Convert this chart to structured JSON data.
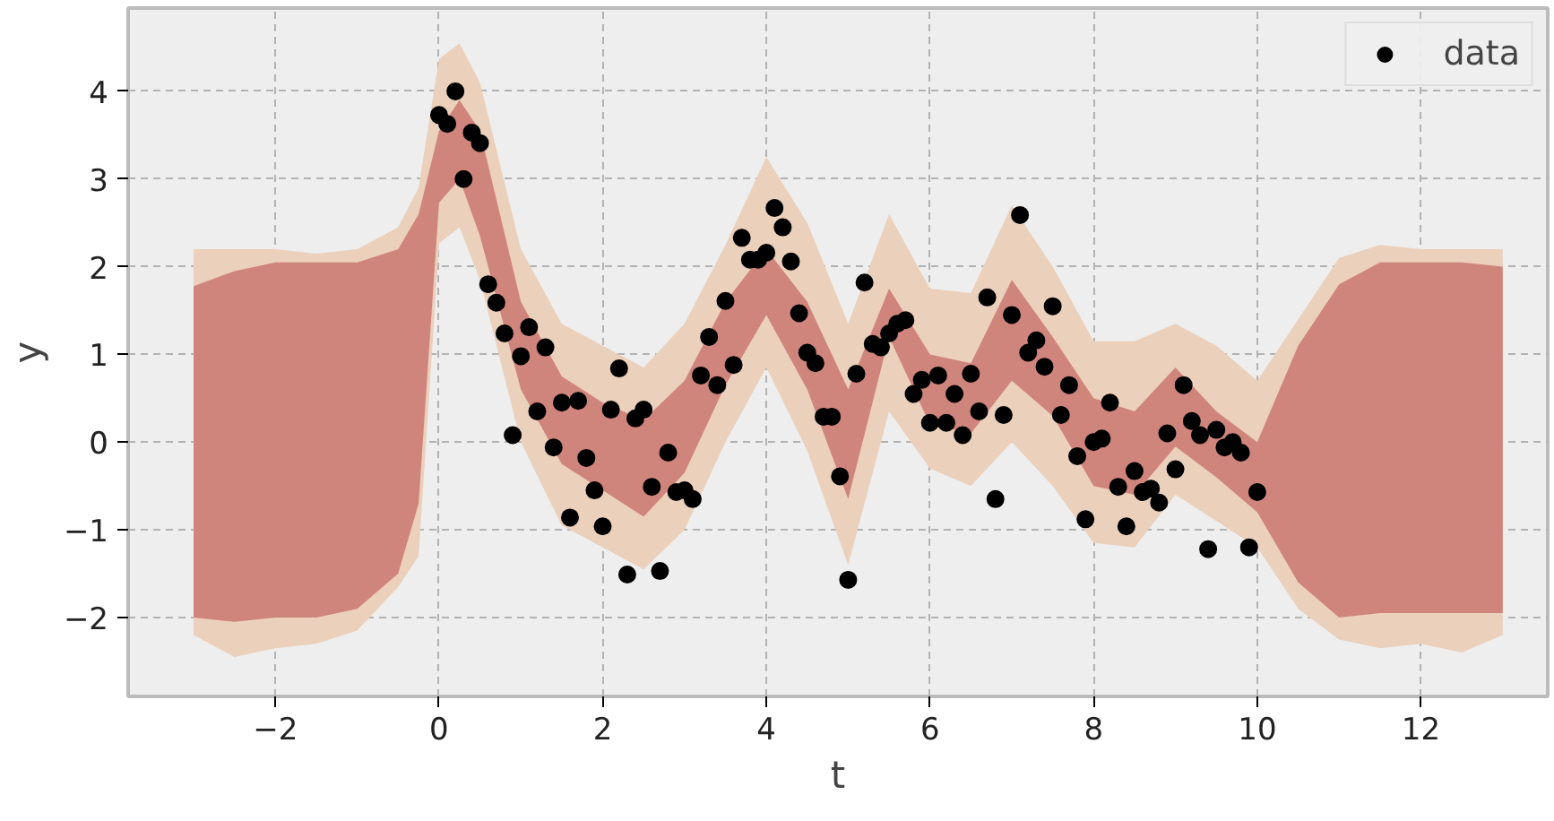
{
  "chart_data": {
    "type": "scatter",
    "xlabel": "t",
    "ylabel": "y",
    "xlim": [
      -3.8,
      13.55
    ],
    "ylim": [
      -2.9,
      4.95
    ],
    "xticks": [
      -2,
      0,
      2,
      4,
      6,
      8,
      10,
      12
    ],
    "yticks": [
      -2,
      -1,
      0,
      1,
      2,
      3,
      4
    ],
    "grid": true,
    "legend": "top right",
    "series": [
      {
        "type": "line",
        "color": "#ebd0bc",
        "x": [
          -3,
          -2.5,
          -2,
          -1.5,
          -1,
          -0.5,
          -0.25,
          0,
          0.25,
          0.5,
          1,
          1.5,
          2,
          2.5,
          3,
          3.5,
          4,
          4.5,
          5,
          5.5,
          6,
          6.5,
          7,
          7.5,
          8,
          8.5,
          9,
          9.5,
          10,
          10.5,
          11,
          11.5,
          12,
          12.5,
          13
        ],
        "values": [
          null,
          null,
          null,
          null,
          null,
          null,
          null,
          null,
          null,
          null,
          null,
          null,
          null,
          null,
          null,
          null,
          null,
          null,
          null,
          null,
          null,
          null,
          null,
          null,
          null,
          null,
          null,
          null,
          null,
          null,
          null,
          null,
          null,
          null,
          null
        ],
        "upper": [
          2.2,
          2.2,
          2.2,
          2.15,
          2.2,
          2.45,
          2.9,
          4.37,
          4.55,
          4.1,
          2.2,
          1.35,
          1.1,
          0.85,
          1.35,
          2.25,
          3.25,
          2.5,
          1.35,
          2.6,
          1.75,
          1.7,
          2.7,
          2.0,
          1.15,
          1.15,
          1.35,
          1.1,
          0.7,
          1.4,
          2.1,
          2.25,
          2.2,
          2.2,
          2.2
        ],
        "lower": [
          -2.2,
          -2.45,
          -2.35,
          -2.3,
          -2.15,
          -1.65,
          -1.3,
          2.27,
          2.45,
          1.85,
          0.0,
          -0.95,
          -1.2,
          -1.45,
          -1.0,
          0.0,
          0.85,
          -0.1,
          -1.4,
          0.35,
          -0.3,
          -0.5,
          0.0,
          -0.5,
          -1.15,
          -1.2,
          -0.6,
          -0.9,
          -1.2,
          -1.9,
          -2.25,
          -2.35,
          -2.3,
          -2.4,
          -2.2
        ]
      },
      {
        "type": "line",
        "color": "#d0857c",
        "x": [
          -3,
          -2.5,
          -2,
          -1.5,
          -1,
          -0.5,
          -0.25,
          0,
          0.25,
          0.5,
          1,
          1.5,
          2,
          2.5,
          3,
          3.5,
          4,
          4.5,
          5,
          5.5,
          6,
          6.5,
          7,
          7.5,
          8,
          8.5,
          9,
          9.5,
          10,
          10.5,
          11,
          11.5,
          12,
          12.5,
          13
        ],
        "values": [
          null,
          null,
          null,
          null,
          null,
          null,
          null,
          null,
          null,
          null,
          null,
          null,
          null,
          null,
          null,
          null,
          null,
          null,
          null,
          null,
          null,
          null,
          null,
          null,
          null,
          null,
          null,
          null,
          null,
          null,
          null,
          null,
          null,
          null,
          null
        ],
        "upper": [
          1.78,
          1.95,
          2.05,
          2.05,
          2.05,
          2.2,
          2.6,
          3.55,
          3.9,
          3.55,
          1.6,
          0.75,
          0.45,
          0.25,
          0.7,
          1.6,
          2.2,
          1.6,
          0.6,
          1.75,
          1.0,
          0.9,
          1.85,
          1.2,
          0.5,
          0.35,
          0.85,
          0.35,
          0.0,
          1.1,
          1.8,
          2.05,
          2.05,
          2.05,
          2.0
        ],
        "lower": [
          -2.0,
          -2.05,
          -2.0,
          -2.0,
          -1.9,
          -1.5,
          -0.7,
          2.73,
          3.0,
          2.35,
          0.6,
          -0.25,
          -0.55,
          -0.85,
          -0.35,
          0.65,
          1.45,
          0.6,
          -0.65,
          1.2,
          0.2,
          0.1,
          0.7,
          0.3,
          -0.5,
          -0.6,
          -0.05,
          -0.4,
          -0.8,
          -1.6,
          -2.0,
          -1.95,
          -1.95,
          -1.95,
          -1.95
        ]
      },
      {
        "name": "data",
        "marker": "circle",
        "color": "#000000",
        "x": [
          0.0,
          0.1,
          0.2,
          0.3,
          0.4,
          0.5,
          0.6,
          0.7,
          0.8,
          0.9,
          1.0,
          1.1,
          1.2,
          1.3,
          1.4,
          1.5,
          1.6,
          1.7,
          1.8,
          1.9,
          2.0,
          2.1,
          2.2,
          2.3,
          2.4,
          2.5,
          2.6,
          2.7,
          2.8,
          2.9,
          3.0,
          3.1,
          3.2,
          3.3,
          3.4,
          3.5,
          3.6,
          3.7,
          3.8,
          3.9,
          4.0,
          4.1,
          4.2,
          4.3,
          4.4,
          4.5,
          4.6,
          4.7,
          4.8,
          4.9,
          5.0,
          5.1,
          5.2,
          5.3,
          5.4,
          5.5,
          5.6,
          5.7,
          5.8,
          5.9,
          6.0,
          6.1,
          6.2,
          6.3,
          6.4,
          6.5,
          6.6,
          6.7,
          6.8,
          6.9,
          7.0,
          7.1,
          7.2,
          7.3,
          7.4,
          7.5,
          7.6,
          7.7,
          7.8,
          7.9,
          8.0,
          8.1,
          8.2,
          8.3,
          8.4,
          8.5,
          8.6,
          8.7,
          8.8,
          8.9,
          9.0,
          9.1,
          9.2,
          9.3,
          9.4,
          9.5,
          9.6,
          9.7,
          9.8,
          9.9,
          10.0
        ],
        "values": [
          3.73,
          3.63,
          4.0,
          3.0,
          3.53,
          3.41,
          1.8,
          1.59,
          1.24,
          0.08,
          0.98,
          1.31,
          0.35,
          1.08,
          -0.06,
          0.45,
          -0.86,
          0.47,
          -0.18,
          -0.55,
          -0.96,
          0.37,
          0.84,
          -1.51,
          0.27,
          0.37,
          -0.51,
          -1.47,
          -0.12,
          -0.57,
          -0.55,
          -0.65,
          0.76,
          1.2,
          0.65,
          1.61,
          0.88,
          2.33,
          2.08,
          2.08,
          2.16,
          2.67,
          2.45,
          2.06,
          1.47,
          1.02,
          0.9,
          0.29,
          0.29,
          -0.39,
          -1.57,
          0.78,
          1.82,
          1.12,
          1.08,
          1.24,
          1.35,
          1.39,
          0.55,
          0.71,
          0.22,
          0.76,
          0.22,
          0.55,
          0.08,
          0.78,
          0.35,
          1.65,
          -0.65,
          0.31,
          1.45,
          2.59,
          1.02,
          1.16,
          0.86,
          1.55,
          0.31,
          0.65,
          -0.16,
          -0.88,
          0.0,
          0.04,
          0.45,
          -0.51,
          -0.96,
          -0.33,
          -0.57,
          -0.53,
          -0.69,
          0.1,
          -0.31,
          0.65,
          0.24,
          0.08,
          -1.22,
          0.14,
          -0.06,
          0.0,
          -0.12,
          -1.2,
          -0.57
        ]
      }
    ]
  }
}
